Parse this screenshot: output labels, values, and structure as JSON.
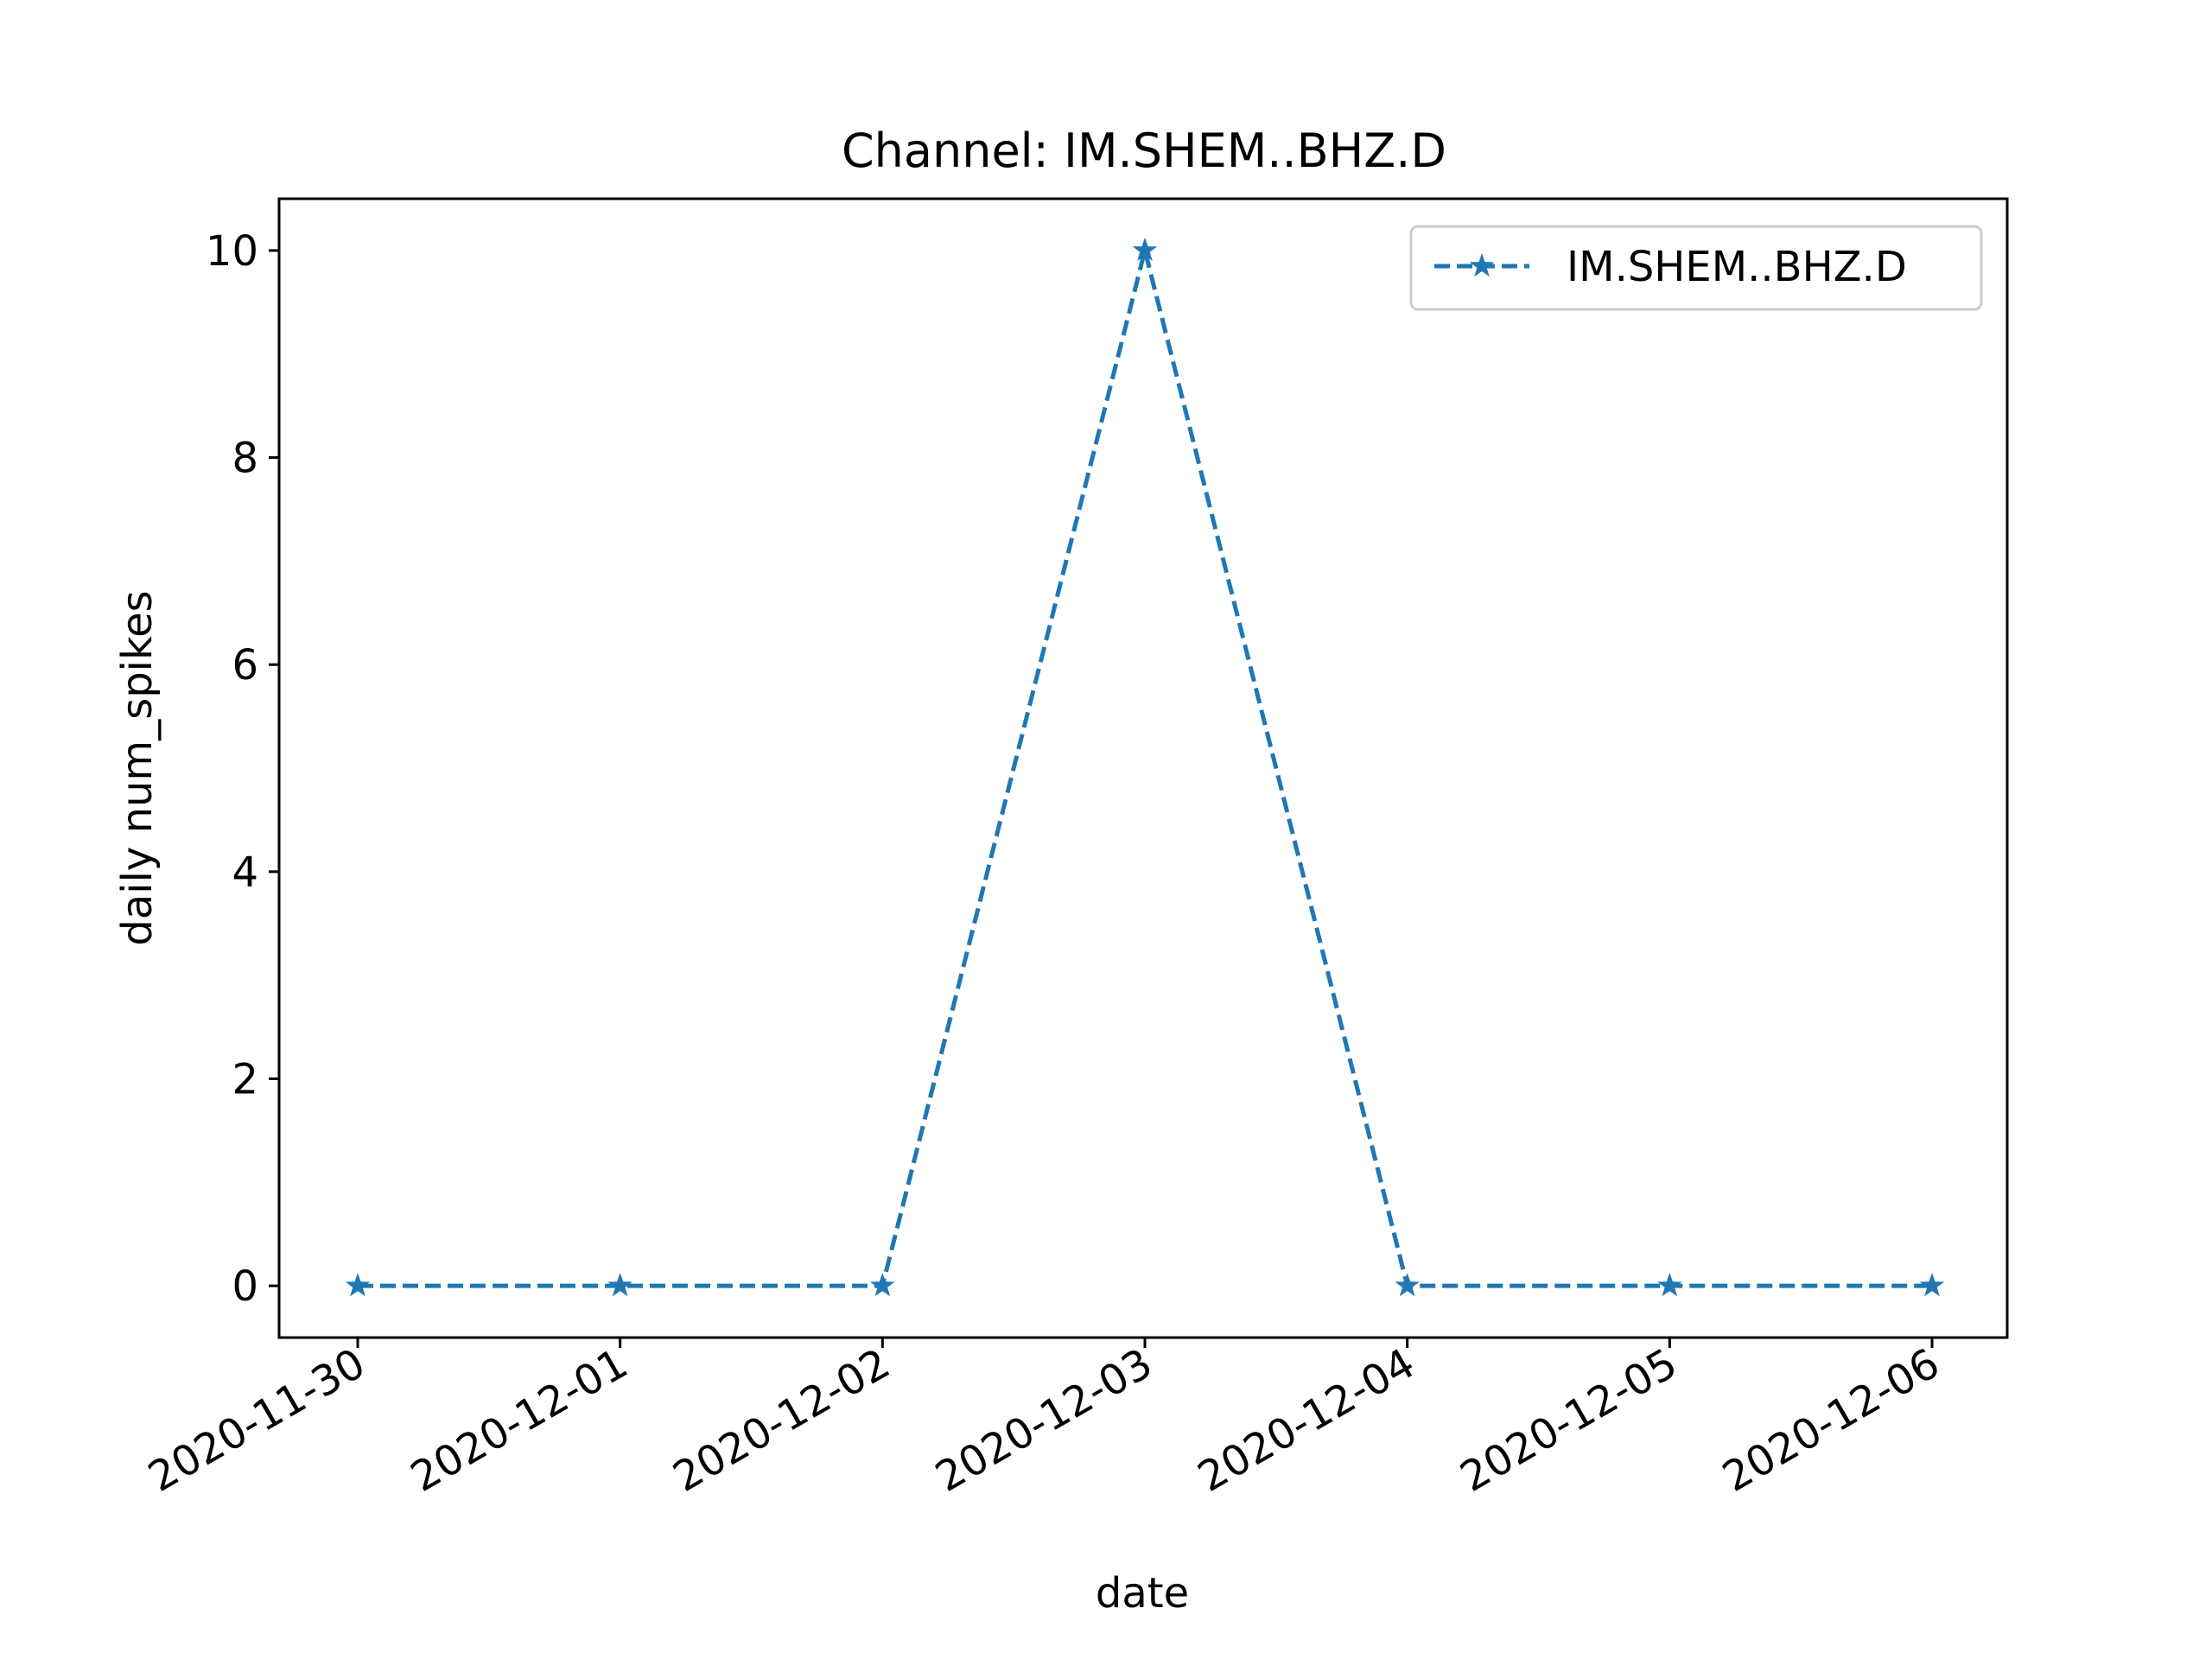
{
  "chart_data": {
    "type": "line",
    "title": "Channel: IM.SHEM..BHZ.D",
    "xlabel": "date",
    "ylabel": "daily num_spikes",
    "x": [
      "2020-11-30",
      "2020-12-01",
      "2020-12-02",
      "2020-12-03",
      "2020-12-04",
      "2020-12-05",
      "2020-12-06"
    ],
    "ylim": [
      -0.5,
      10.5
    ],
    "yticks": [
      "0",
      "2",
      "4",
      "6",
      "8",
      "10"
    ],
    "grid": false,
    "legend_position": "top-right",
    "series": [
      {
        "name": "IM.SHEM..BHZ.D",
        "values": [
          0,
          0,
          0,
          10,
          0,
          0,
          0
        ],
        "color": "#1f77b4",
        "line_style": "dashed",
        "marker": "star"
      }
    ]
  }
}
